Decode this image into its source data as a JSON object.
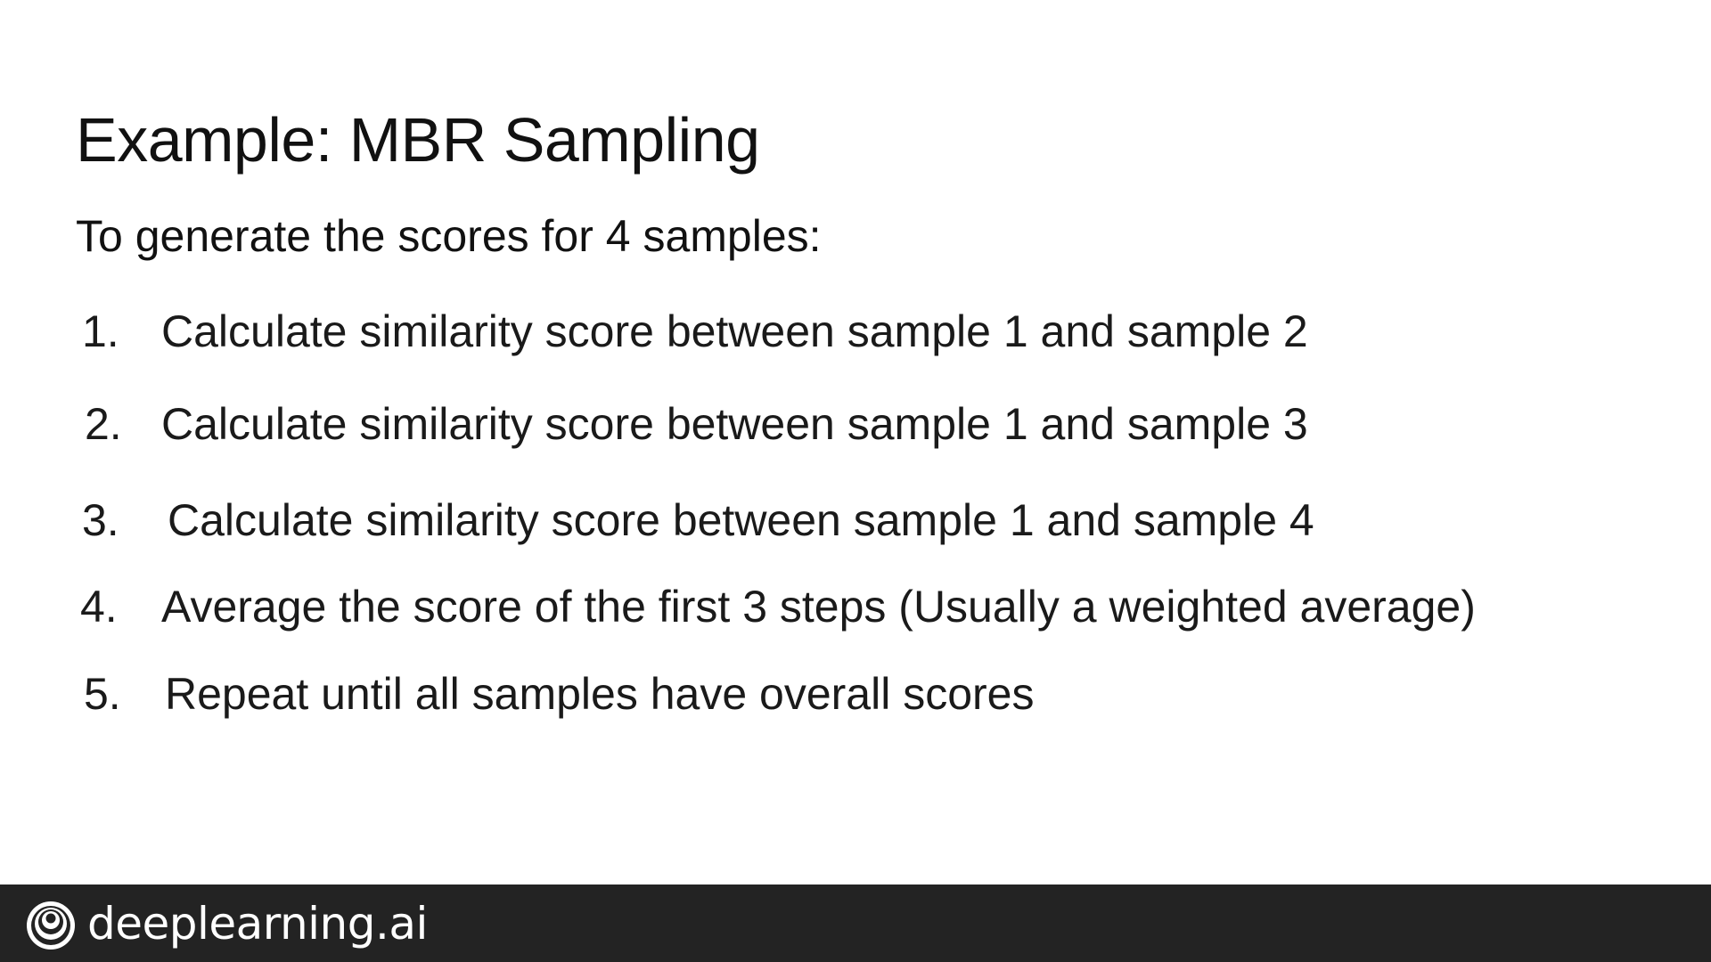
{
  "slide": {
    "title": "Example: MBR Sampling",
    "intro": "To generate the scores for 4 samples:",
    "steps": [
      {
        "number": "1.",
        "text": "Calculate similarity score between sample 1 and sample 2"
      },
      {
        "number": "2.",
        "text": "Calculate similarity score between sample 1 and sample 3"
      },
      {
        "number": "3.",
        "text": "Calculate similarity score between sample 1 and sample 4"
      },
      {
        "number": "4.",
        "text": "Average the score of the first 3 steps (Usually a weighted average)"
      },
      {
        "number": "5.",
        "text": "Repeat until all samples have overall scores"
      }
    ]
  },
  "footer": {
    "brand": "deeplearning.ai",
    "logo_icon": "deeplearning-logo-icon",
    "background_color": "#232323",
    "text_color": "#ffffff"
  }
}
